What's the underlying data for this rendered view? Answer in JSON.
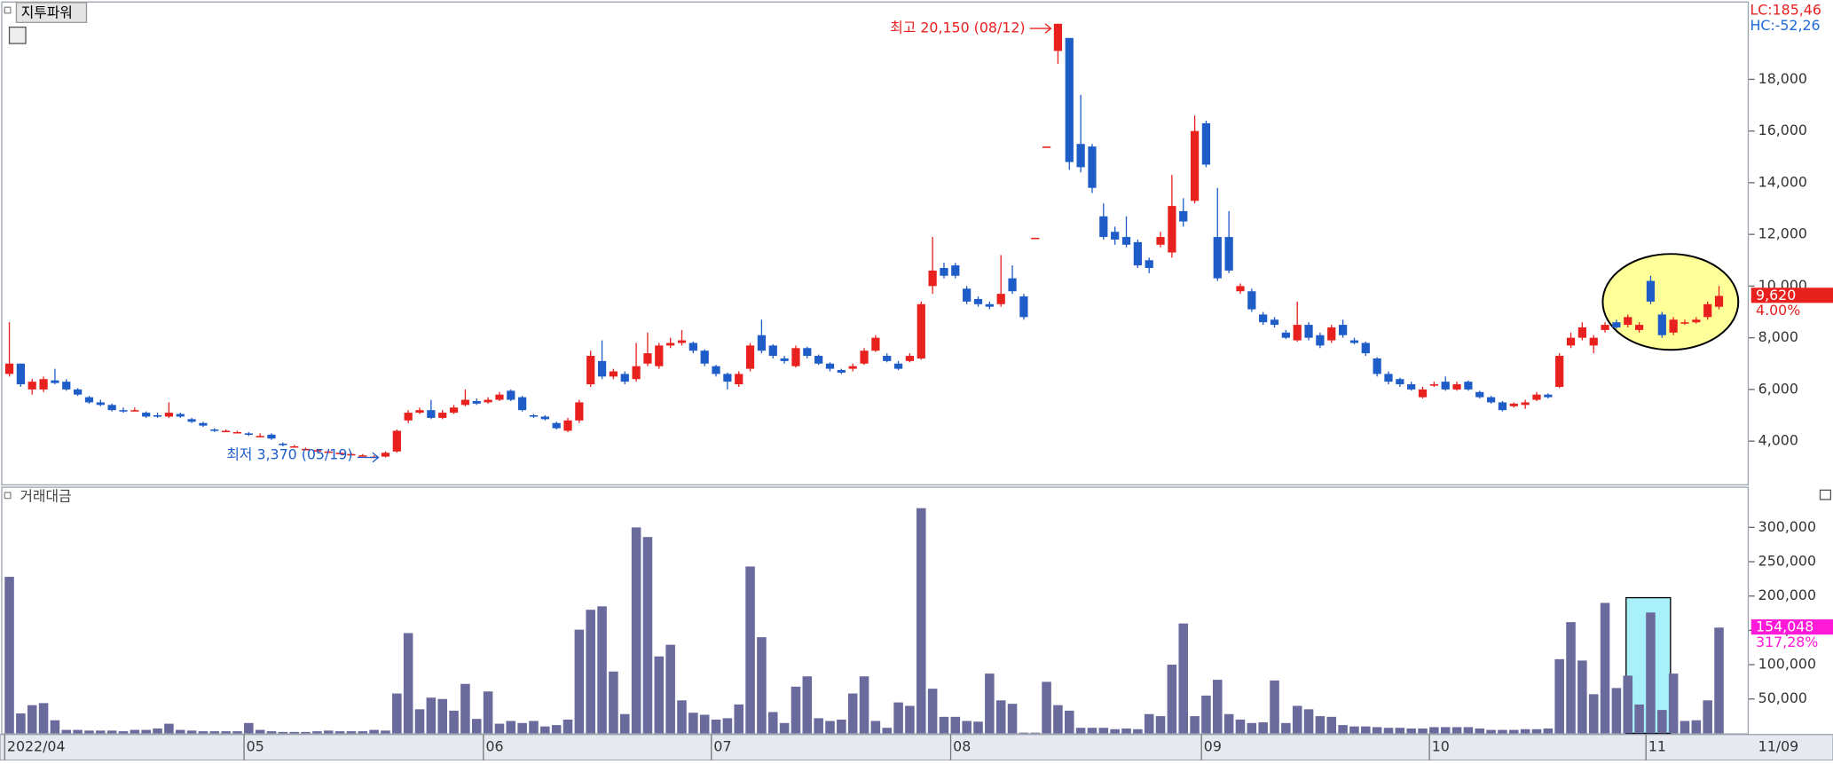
{
  "chart_data": [
    {
      "type": "candlestick",
      "title": "지투파워",
      "indicators": [
        "LC:185,46",
        "HC:-52,26"
      ],
      "high_label": "최고 20,150 (08/12)",
      "high_index": 92,
      "low_label": "최저 3,370 (05/19)",
      "low_index": 33,
      "last_value_label": "9,620",
      "change_label": "4.00%",
      "last_date": "11/09",
      "up_color": "#e8211e",
      "down_color": "#1e5cc8",
      "ylim": [
        2330,
        20970
      ],
      "yticks": [
        {
          "value": 4000,
          "label": "4,000"
        },
        {
          "value": 6000,
          "label": "6,000"
        },
        {
          "value": 8000,
          "label": "8,000"
        },
        {
          "value": 10000,
          "label": "10,000"
        },
        {
          "value": 12000,
          "label": "12,000"
        },
        {
          "value": 14000,
          "label": "14,000"
        },
        {
          "value": 16000,
          "label": "16,000"
        },
        {
          "value": 18000,
          "label": "18,000"
        }
      ],
      "categories": [
        "2022/04",
        null,
        null,
        null,
        null,
        null,
        null,
        null,
        null,
        null,
        null,
        null,
        null,
        null,
        null,
        null,
        null,
        null,
        null,
        null,
        null,
        "05",
        null,
        null,
        null,
        null,
        null,
        null,
        null,
        null,
        null,
        null,
        null,
        null,
        null,
        null,
        null,
        null,
        null,
        null,
        null,
        null,
        "06",
        null,
        null,
        null,
        null,
        null,
        null,
        null,
        null,
        null,
        null,
        null,
        null,
        null,
        null,
        null,
        null,
        null,
        null,
        null,
        "07",
        null,
        null,
        null,
        null,
        null,
        null,
        null,
        null,
        null,
        null,
        null,
        null,
        null,
        null,
        null,
        null,
        null,
        null,
        null,
        null,
        "08",
        null,
        null,
        null,
        null,
        null,
        null,
        null,
        null,
        null,
        null,
        null,
        null,
        null,
        null,
        null,
        null,
        null,
        null,
        null,
        null,
        null,
        "09",
        null,
        null,
        null,
        null,
        null,
        null,
        null,
        null,
        null,
        null,
        null,
        null,
        null,
        null,
        null,
        null,
        null,
        null,
        null,
        "10",
        null,
        null,
        null,
        null,
        null,
        null,
        null,
        null,
        null,
        null,
        null,
        null,
        null,
        null,
        null,
        null,
        null,
        null,
        "11",
        null,
        null,
        null,
        null,
        null,
        null
      ],
      "open": [
        6600,
        7000,
        6000,
        6000,
        6350,
        6300,
        6000,
        5700,
        5500,
        5400,
        5200,
        5200,
        5100,
        5000,
        4950,
        5050,
        4850,
        4700,
        4450,
        4400,
        4350,
        4300,
        4200,
        4250,
        3900,
        3800,
        3700,
        3650,
        3600,
        3550,
        3500,
        3450,
        3400,
        3400,
        3600,
        4800,
        5100,
        5200,
        4900,
        5100,
        5400,
        5550,
        5500,
        5600,
        5950,
        5700,
        5000,
        4950,
        4700,
        4400,
        4800,
        6200,
        7100,
        6500,
        6600,
        6400,
        7000,
        6900,
        7700,
        7800,
        7800,
        7500,
        6900,
        6600,
        6200,
        6800,
        8100,
        7700,
        7200,
        6900,
        7600,
        7300,
        7000,
        6750,
        6800,
        7000,
        7500,
        7300,
        7000,
        7100,
        7200,
        10000,
        10700,
        10800,
        9900,
        9500,
        9300,
        9300,
        10300,
        9600,
        11870,
        15400,
        19100,
        19600,
        15500,
        15400,
        12700,
        12100,
        11900,
        11700,
        11000,
        11600,
        11300,
        12900,
        13300,
        16300,
        11900,
        11900,
        9800,
        9800,
        8900,
        8700,
        8200,
        7900,
        8500,
        8100,
        7900,
        8500,
        7900,
        7800,
        7200,
        6600,
        6400,
        6200,
        5700,
        6200,
        6300,
        6000,
        6300,
        5900,
        5700,
        5500,
        5350,
        5400,
        5600,
        5800,
        6100,
        7700,
        8000,
        7700,
        8300,
        8600,
        8500,
        8300,
        10200,
        8900,
        8200,
        8600,
        8600,
        8800,
        9200
      ],
      "high": [
        8600,
        7000,
        6400,
        6500,
        6800,
        6400,
        6050,
        5750,
        5600,
        5450,
        5300,
        5300,
        5150,
        5100,
        5500,
        5100,
        4900,
        4750,
        4500,
        4450,
        4400,
        4350,
        4300,
        4300,
        3950,
        3850,
        3750,
        3700,
        3650,
        3600,
        3550,
        3500,
        3450,
        3600,
        4450,
        5200,
        5300,
        5600,
        5200,
        5400,
        6000,
        5650,
        5700,
        5900,
        6000,
        5750,
        5050,
        5000,
        4750,
        4900,
        5600,
        7500,
        7900,
        6800,
        6700,
        7800,
        8200,
        7800,
        8000,
        8300,
        7850,
        7550,
        6950,
        6650,
        6700,
        7800,
        8700,
        7750,
        7300,
        7700,
        7650,
        7350,
        7050,
        6800,
        7000,
        7600,
        8100,
        7400,
        7100,
        7400,
        9400,
        11900,
        10900,
        10900,
        10000,
        9600,
        9400,
        11200,
        10800,
        9700,
        11870,
        15400,
        20150,
        19600,
        17400,
        15500,
        13200,
        12300,
        12700,
        11800,
        11100,
        12100,
        14300,
        13400,
        16600,
        16400,
        13800,
        12900,
        10100,
        9900,
        9000,
        8800,
        8300,
        9400,
        8600,
        8200,
        8500,
        8700,
        8000,
        7850,
        7250,
        6700,
        6450,
        6300,
        6100,
        6300,
        6500,
        6300,
        6350,
        5950,
        5750,
        5550,
        5500,
        5600,
        5900,
        5850,
        7400,
        8200,
        8600,
        8100,
        8600,
        8700,
        8900,
        8600,
        10400,
        9000,
        8800,
        8700,
        8800,
        9400,
        10000
      ],
      "low": [
        6500,
        6100,
        5800,
        5900,
        6200,
        5950,
        5750,
        5450,
        5350,
        5150,
        5100,
        5150,
        4900,
        4900,
        4900,
        4900,
        4700,
        4550,
        4350,
        4350,
        4300,
        4200,
        4150,
        4050,
        3800,
        3750,
        3650,
        3600,
        3550,
        3500,
        3450,
        3420,
        3380,
        3370,
        3550,
        4700,
        5050,
        4850,
        4850,
        5050,
        5350,
        5400,
        5450,
        5550,
        5550,
        5150,
        4900,
        4800,
        4450,
        4350,
        4700,
        6100,
        6400,
        6400,
        6200,
        6300,
        6900,
        6800,
        7600,
        7700,
        7400,
        6900,
        6500,
        6000,
        6100,
        6700,
        7400,
        7200,
        7000,
        6850,
        7200,
        6950,
        6700,
        6600,
        6700,
        6950,
        7450,
        7050,
        6750,
        7050,
        7150,
        9700,
        10300,
        10300,
        9300,
        9200,
        9100,
        9200,
        9700,
        8700,
        11870,
        15400,
        18600,
        14500,
        14400,
        13600,
        11800,
        11600,
        11500,
        10700,
        10500,
        11500,
        11100,
        12300,
        13200,
        14600,
        10200,
        10500,
        9700,
        9000,
        8500,
        8400,
        7950,
        7850,
        7900,
        7600,
        7800,
        8000,
        7750,
        7300,
        6500,
        6200,
        6100,
        5950,
        5650,
        6100,
        5950,
        5950,
        5950,
        5650,
        5450,
        5150,
        5300,
        5250,
        5550,
        5650,
        6050,
        7600,
        7900,
        7400,
        8200,
        8350,
        8400,
        8200,
        9300,
        8000,
        8100,
        8500,
        8550,
        8700,
        9100
      ],
      "close": [
        7000,
        6200,
        6300,
        6400,
        6250,
        6000,
        5800,
        5500,
        5400,
        5200,
        5150,
        5200,
        4950,
        4950,
        5100,
        4950,
        4750,
        4600,
        4400,
        4400,
        4350,
        4250,
        4200,
        4100,
        3850,
        3800,
        3700,
        3650,
        3600,
        3550,
        3500,
        3450,
        3400,
        3550,
        4400,
        5100,
        5200,
        4900,
        5100,
        5300,
        5600,
        5450,
        5600,
        5800,
        5600,
        5200,
        4950,
        4850,
        4500,
        4800,
        5500,
        7300,
        6500,
        6700,
        6300,
        6900,
        7400,
        7700,
        7800,
        7900,
        7500,
        7000,
        6600,
        6300,
        6600,
        7700,
        7500,
        7300,
        7100,
        7600,
        7300,
        7000,
        6800,
        6650,
        6900,
        7500,
        8000,
        7100,
        6800,
        7300,
        9300,
        10600,
        10400,
        10400,
        9400,
        9300,
        9200,
        9700,
        9800,
        8800,
        11870,
        15400,
        20150,
        14800,
        14600,
        13800,
        11900,
        11800,
        11600,
        10800,
        10700,
        11900,
        13100,
        12500,
        16000,
        14700,
        10300,
        10600,
        10000,
        9100,
        8600,
        8500,
        8000,
        8500,
        8000,
        7700,
        8400,
        8100,
        7800,
        7400,
        6600,
        6300,
        6200,
        6000,
        6000,
        6200,
        6000,
        6200,
        6000,
        5700,
        5500,
        5200,
        5450,
        5500,
        5800,
        5700,
        7300,
        8000,
        8400,
        8000,
        8500,
        8400,
        8800,
        8500,
        9400,
        8100,
        8700,
        8600,
        8700,
        9300,
        9620
      ]
    },
    {
      "type": "bar",
      "title": "거래대금",
      "color": "#6a6a9c",
      "last_value_label": "154,048",
      "change_label": "317,28%",
      "ylim": [
        0,
        356000
      ],
      "yticks": [
        {
          "value": 50000,
          "label": "50,000"
        },
        {
          "value": 100000,
          "label": "100,000"
        },
        {
          "value": 150000,
          "label": "150,000"
        },
        {
          "value": 200000,
          "label": "200,000"
        },
        {
          "value": 250000,
          "label": "250,000"
        },
        {
          "value": 300000,
          "label": "300,000"
        }
      ],
      "values": [
        228000,
        29000,
        41000,
        44000,
        19000,
        5000,
        5000,
        4000,
        4000,
        4000,
        3000,
        5000,
        5000,
        7000,
        14000,
        5000,
        4000,
        3000,
        3000,
        3000,
        3000,
        15000,
        5000,
        3000,
        2000,
        2000,
        2000,
        3000,
        4000,
        3000,
        3000,
        3000,
        5000,
        4000,
        58000,
        146000,
        35000,
        52000,
        50000,
        33000,
        72000,
        21000,
        61000,
        14000,
        18000,
        15000,
        18000,
        10000,
        12000,
        20000,
        151000,
        180000,
        185000,
        90000,
        28000,
        300000,
        286000,
        112000,
        129000,
        48000,
        30000,
        27000,
        20000,
        22000,
        42000,
        243000,
        140000,
        31000,
        15000,
        68000,
        83000,
        22000,
        18000,
        20000,
        58000,
        83000,
        18000,
        8000,
        45000,
        40000,
        328000,
        65000,
        24000,
        24000,
        18000,
        17000,
        87000,
        48000,
        43000,
        1000,
        1000,
        75000,
        41000,
        33000,
        8000,
        8000,
        8000,
        6000,
        7000,
        6000,
        28000,
        25000,
        100000,
        160000,
        25000,
        55000,
        78000,
        28000,
        20000,
        15000,
        16000,
        77000,
        15000,
        40000,
        35000,
        25000,
        24000,
        12000,
        10000,
        10000,
        9000,
        8000,
        8000,
        7000,
        7000,
        9000,
        9000,
        9000,
        9000,
        7000,
        5000,
        5000,
        5000,
        6000,
        6000,
        7000,
        108000,
        162000,
        106000,
        57000,
        190000,
        66000,
        84000,
        42000,
        176000,
        34000,
        87000,
        18000,
        19000,
        48000,
        154048
      ]
    }
  ]
}
